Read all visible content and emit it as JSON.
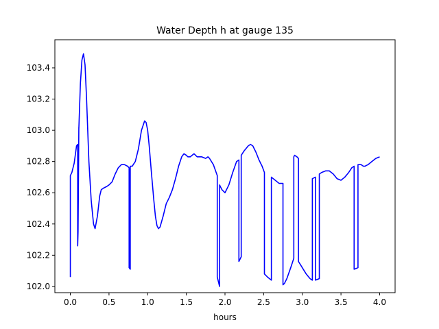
{
  "chart_data": {
    "type": "line",
    "title": "Water Depth h at gauge 135",
    "xlabel": "hours",
    "ylabel": "",
    "xlim": [
      -0.2,
      4.2
    ],
    "ylim": [
      101.96,
      103.58
    ],
    "xticks": [
      0.0,
      0.5,
      1.0,
      1.5,
      2.0,
      2.5,
      3.0,
      3.5,
      4.0
    ],
    "xtick_labels": [
      "0.0",
      "0.5",
      "1.0",
      "1.5",
      "2.0",
      "2.5",
      "3.0",
      "3.5",
      "4.0"
    ],
    "yticks": [
      102.0,
      102.2,
      102.4,
      102.6,
      102.8,
      103.0,
      103.2,
      103.4
    ],
    "ytick_labels": [
      "102.0",
      "102.2",
      "102.4",
      "102.6",
      "102.8",
      "103.0",
      "103.2",
      "103.4"
    ],
    "grid": false,
    "line_color": "#0000ff",
    "series": [
      {
        "x": [
          0.0,
          0.0,
          0.02,
          0.05,
          0.08,
          0.095,
          0.095,
          0.1,
          0.11,
          0.11,
          0.13,
          0.15,
          0.17,
          0.19,
          0.21,
          0.24,
          0.27,
          0.3,
          0.32,
          0.35,
          0.38,
          0.4,
          0.43,
          0.47,
          0.5,
          0.54,
          0.58,
          0.62,
          0.66,
          0.7,
          0.74,
          0.76,
          0.76,
          0.775,
          0.775,
          0.8,
          0.84,
          0.88,
          0.92,
          0.96,
          0.98,
          1.0,
          1.02,
          1.05,
          1.08,
          1.1,
          1.12,
          1.14,
          1.16,
          1.2,
          1.24,
          1.28,
          1.32,
          1.36,
          1.4,
          1.44,
          1.47,
          1.5,
          1.52,
          1.55,
          1.6,
          1.62,
          1.64,
          1.7,
          1.75,
          1.78,
          1.8,
          1.85,
          1.9,
          1.9,
          1.93,
          1.93,
          1.96,
          2.0,
          2.05,
          2.1,
          2.15,
          2.18,
          2.18,
          2.21,
          2.21,
          2.25,
          2.3,
          2.33,
          2.36,
          2.4,
          2.44,
          2.48,
          2.51,
          2.51,
          2.55,
          2.6,
          2.6,
          2.65,
          2.7,
          2.75,
          2.75,
          2.77,
          2.8,
          2.85,
          2.89,
          2.89,
          2.9,
          2.93,
          2.95,
          2.95,
          3.0,
          3.05,
          3.1,
          3.13,
          3.13,
          3.17,
          3.17,
          3.22,
          3.22,
          3.25,
          3.3,
          3.35,
          3.4,
          3.45,
          3.5,
          3.55,
          3.6,
          3.64,
          3.67,
          3.67,
          3.72,
          3.72,
          3.76,
          3.79,
          3.81,
          3.85,
          3.9,
          3.95,
          4.0
        ],
        "y": [
          102.06,
          102.71,
          102.73,
          102.79,
          102.9,
          102.91,
          102.26,
          102.35,
          103.02,
          103.01,
          103.3,
          103.45,
          103.49,
          103.42,
          103.2,
          102.8,
          102.55,
          102.4,
          102.37,
          102.45,
          102.58,
          102.62,
          102.63,
          102.64,
          102.65,
          102.67,
          102.72,
          102.76,
          102.78,
          102.78,
          102.77,
          102.76,
          102.12,
          102.11,
          102.77,
          102.77,
          102.8,
          102.88,
          103.0,
          103.06,
          103.05,
          103.0,
          102.9,
          102.72,
          102.55,
          102.45,
          102.39,
          102.37,
          102.38,
          102.45,
          102.53,
          102.57,
          102.62,
          102.69,
          102.77,
          102.83,
          102.85,
          102.84,
          102.83,
          102.83,
          102.85,
          102.84,
          102.83,
          102.83,
          102.82,
          102.83,
          102.82,
          102.78,
          102.71,
          102.06,
          102.0,
          102.65,
          102.62,
          102.6,
          102.65,
          102.73,
          102.8,
          102.81,
          102.16,
          102.19,
          102.84,
          102.87,
          102.9,
          102.91,
          102.9,
          102.86,
          102.81,
          102.77,
          102.73,
          102.08,
          102.06,
          102.04,
          102.7,
          102.68,
          102.66,
          102.66,
          102.01,
          102.02,
          102.05,
          102.12,
          102.18,
          102.83,
          102.84,
          102.83,
          102.82,
          102.16,
          102.12,
          102.08,
          102.05,
          102.04,
          102.69,
          102.7,
          102.04,
          102.05,
          102.72,
          102.73,
          102.74,
          102.74,
          102.72,
          102.69,
          102.68,
          102.7,
          102.73,
          102.76,
          102.77,
          102.11,
          102.12,
          102.78,
          102.78,
          102.77,
          102.77,
          102.78,
          102.8,
          102.82,
          102.83
        ]
      }
    ]
  }
}
